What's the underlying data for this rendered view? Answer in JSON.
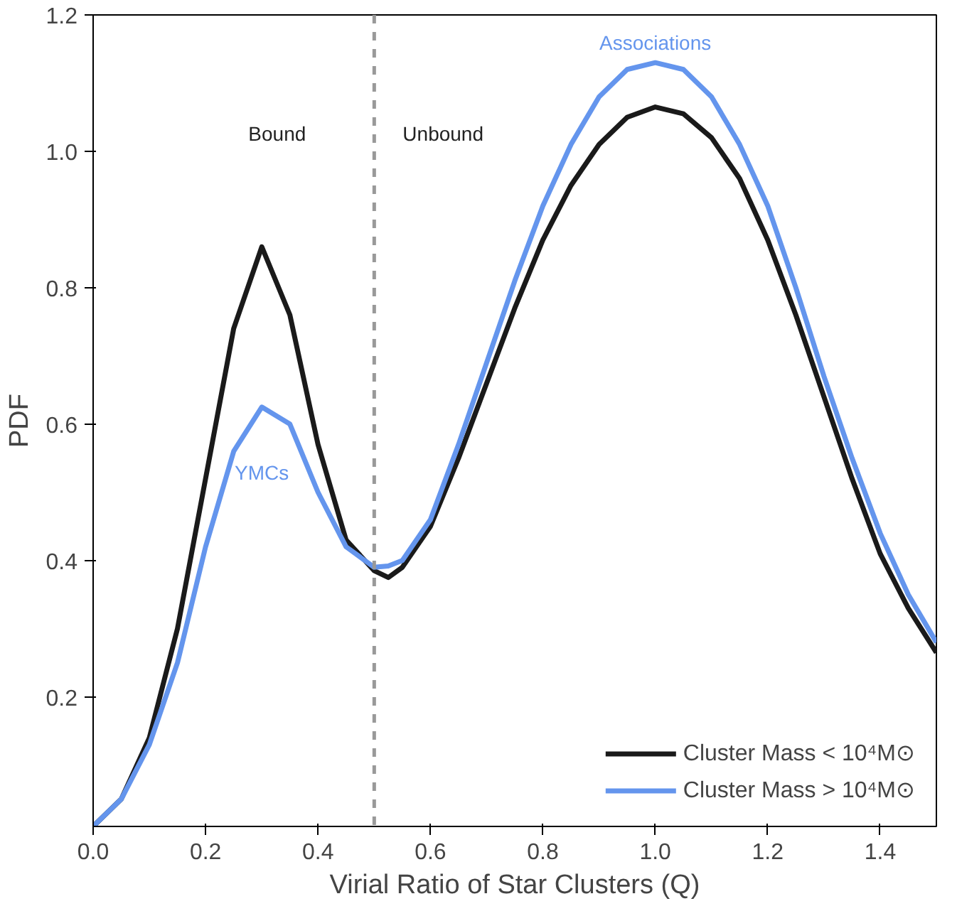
{
  "chart_data": {
    "type": "line",
    "xlabel": "Virial Ratio of Star Clusters (Q)",
    "ylabel": "PDF",
    "x": [
      0,
      0.05,
      0.1,
      0.15,
      0.2,
      0.25,
      0.3,
      0.35,
      0.4,
      0.45,
      0.5,
      0.525,
      0.55,
      0.6,
      0.65,
      0.7,
      0.75,
      0.8,
      0.85,
      0.9,
      0.95,
      1.0,
      1.05,
      1.1,
      1.15,
      1.2,
      1.25,
      1.3,
      1.35,
      1.4,
      1.45,
      1.5
    ],
    "series": [
      {
        "name": "Cluster Mass < 10⁴M⊙",
        "color": "#1a1a1a",
        "values": [
          0.01,
          0.05,
          0.14,
          0.3,
          0.52,
          0.74,
          0.86,
          0.76,
          0.57,
          0.43,
          0.385,
          0.375,
          0.39,
          0.45,
          0.55,
          0.66,
          0.77,
          0.87,
          0.95,
          1.01,
          1.05,
          1.065,
          1.055,
          1.02,
          0.96,
          0.87,
          0.76,
          0.64,
          0.52,
          0.41,
          0.33,
          0.265
        ]
      },
      {
        "name": "Cluster Mass > 10⁴M⊙",
        "color": "#6495ed",
        "values": [
          0.01,
          0.05,
          0.13,
          0.25,
          0.42,
          0.56,
          0.625,
          0.6,
          0.5,
          0.42,
          0.39,
          0.392,
          0.4,
          0.46,
          0.57,
          0.69,
          0.81,
          0.92,
          1.01,
          1.08,
          1.12,
          1.13,
          1.12,
          1.08,
          1.01,
          0.92,
          0.8,
          0.67,
          0.55,
          0.44,
          0.35,
          0.28
        ]
      }
    ],
    "xlim": [
      0,
      1.5
    ],
    "ylim": [
      0.01,
      1.2
    ],
    "xticks": [
      {
        "value": 0,
        "label": "0.0"
      },
      0.2,
      0.4,
      0.6,
      0.8,
      {
        "value": 1,
        "label": "1.0"
      },
      1.2,
      1.4
    ],
    "yticks": [
      0.2,
      0.4,
      0.6,
      0.8,
      {
        "value": 1,
        "label": "1.0"
      },
      1.2
    ],
    "ref_lines": [
      {
        "axis": "x",
        "value": 0.5,
        "color": "#999999",
        "line_style": "dashed"
      }
    ],
    "annotations": [
      "Bound",
      "Unbound",
      {
        "text": "YMCs",
        "x": 0.3,
        "y": 0.625
      },
      {
        "text": "Associations",
        "x": 1.0,
        "y": 1.13
      }
    ],
    "legend": "bottom right",
    "grid": false,
    "line_style": "solid",
    "marker": "none"
  }
}
